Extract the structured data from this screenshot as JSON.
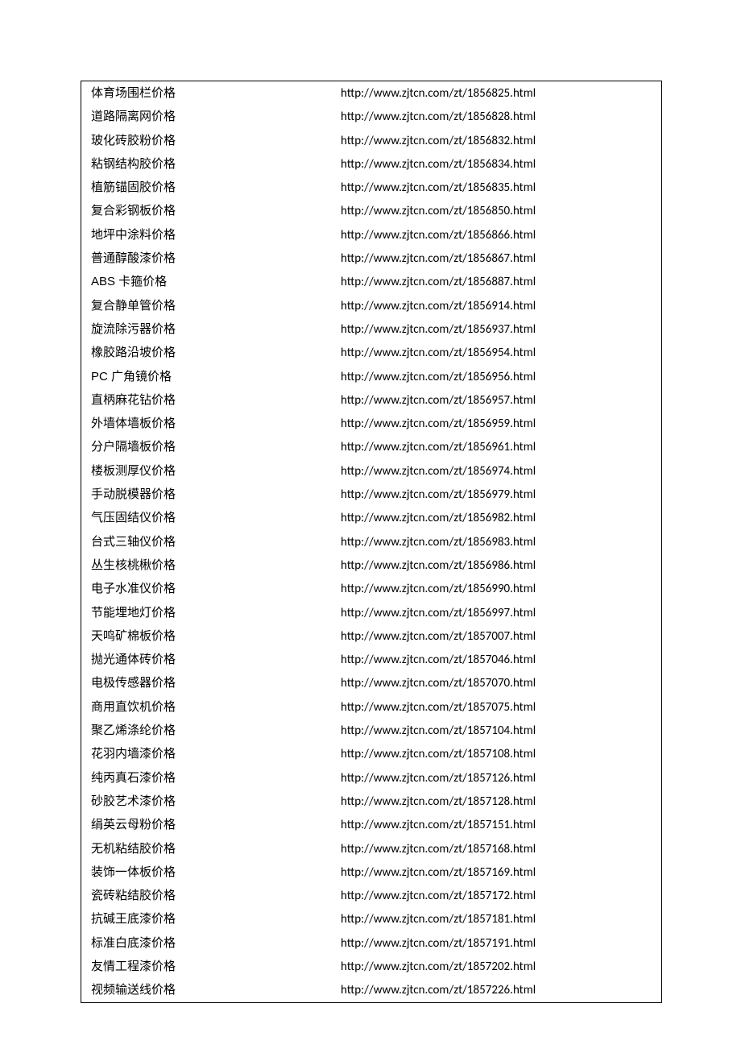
{
  "rows": [
    {
      "name": "体育场围栏价格",
      "url": "http://www.zjtcn.com/zt/1856825.html"
    },
    {
      "name": "道路隔离网价格",
      "url": "http://www.zjtcn.com/zt/1856828.html"
    },
    {
      "name": "玻化砖胶粉价格",
      "url": "http://www.zjtcn.com/zt/1856832.html"
    },
    {
      "name": "粘钢结构胶价格",
      "url": "http://www.zjtcn.com/zt/1856834.html"
    },
    {
      "name": "植筋锚固胶价格",
      "url": "http://www.zjtcn.com/zt/1856835.html"
    },
    {
      "name": "复合彩钢板价格",
      "url": "http://www.zjtcn.com/zt/1856850.html"
    },
    {
      "name": "地坪中涂料价格",
      "url": "http://www.zjtcn.com/zt/1856866.html"
    },
    {
      "name": "普通醇酸漆价格",
      "url": "http://www.zjtcn.com/zt/1856867.html"
    },
    {
      "name": "ABS 卡箍价格",
      "url": "http://www.zjtcn.com/zt/1856887.html"
    },
    {
      "name": "复合静单管价格",
      "url": "http://www.zjtcn.com/zt/1856914.html"
    },
    {
      "name": "旋流除污器价格",
      "url": "http://www.zjtcn.com/zt/1856937.html"
    },
    {
      "name": "橡胶路沿坡价格",
      "url": "http://www.zjtcn.com/zt/1856954.html"
    },
    {
      "name": "PC 广角镜价格",
      "url": "http://www.zjtcn.com/zt/1856956.html"
    },
    {
      "name": "直柄麻花钻价格",
      "url": "http://www.zjtcn.com/zt/1856957.html"
    },
    {
      "name": "外墙体墙板价格",
      "url": "http://www.zjtcn.com/zt/1856959.html"
    },
    {
      "name": "分户隔墙板价格",
      "url": "http://www.zjtcn.com/zt/1856961.html"
    },
    {
      "name": "楼板测厚仪价格",
      "url": "http://www.zjtcn.com/zt/1856974.html"
    },
    {
      "name": "手动脱模器价格",
      "url": "http://www.zjtcn.com/zt/1856979.html"
    },
    {
      "name": "气压固结仪价格",
      "url": "http://www.zjtcn.com/zt/1856982.html"
    },
    {
      "name": "台式三轴仪价格",
      "url": "http://www.zjtcn.com/zt/1856983.html"
    },
    {
      "name": "丛生核桃楸价格",
      "url": "http://www.zjtcn.com/zt/1856986.html"
    },
    {
      "name": "电子水准仪价格",
      "url": "http://www.zjtcn.com/zt/1856990.html"
    },
    {
      "name": "节能埋地灯价格",
      "url": "http://www.zjtcn.com/zt/1856997.html"
    },
    {
      "name": "天鸣矿棉板价格",
      "url": "http://www.zjtcn.com/zt/1857007.html"
    },
    {
      "name": "抛光通体砖价格",
      "url": "http://www.zjtcn.com/zt/1857046.html"
    },
    {
      "name": "电极传感器价格",
      "url": "http://www.zjtcn.com/zt/1857070.html"
    },
    {
      "name": "商用直饮机价格",
      "url": "http://www.zjtcn.com/zt/1857075.html"
    },
    {
      "name": "聚乙烯涤纶价格",
      "url": "http://www.zjtcn.com/zt/1857104.html"
    },
    {
      "name": "花羽内墙漆价格",
      "url": "http://www.zjtcn.com/zt/1857108.html"
    },
    {
      "name": "纯丙真石漆价格",
      "url": "http://www.zjtcn.com/zt/1857126.html"
    },
    {
      "name": "砂胶艺术漆价格",
      "url": "http://www.zjtcn.com/zt/1857128.html"
    },
    {
      "name": "绢英云母粉价格",
      "url": "http://www.zjtcn.com/zt/1857151.html"
    },
    {
      "name": "无机粘结胶价格",
      "url": "http://www.zjtcn.com/zt/1857168.html"
    },
    {
      "name": "装饰一体板价格",
      "url": "http://www.zjtcn.com/zt/1857169.html"
    },
    {
      "name": "瓷砖粘结胶价格",
      "url": "http://www.zjtcn.com/zt/1857172.html"
    },
    {
      "name": "抗碱王底漆价格",
      "url": "http://www.zjtcn.com/zt/1857181.html"
    },
    {
      "name": "标准白底漆价格",
      "url": "http://www.zjtcn.com/zt/1857191.html"
    },
    {
      "name": "友情工程漆价格",
      "url": "http://www.zjtcn.com/zt/1857202.html"
    },
    {
      "name": "视频输送线价格",
      "url": "http://www.zjtcn.com/zt/1857226.html"
    }
  ]
}
